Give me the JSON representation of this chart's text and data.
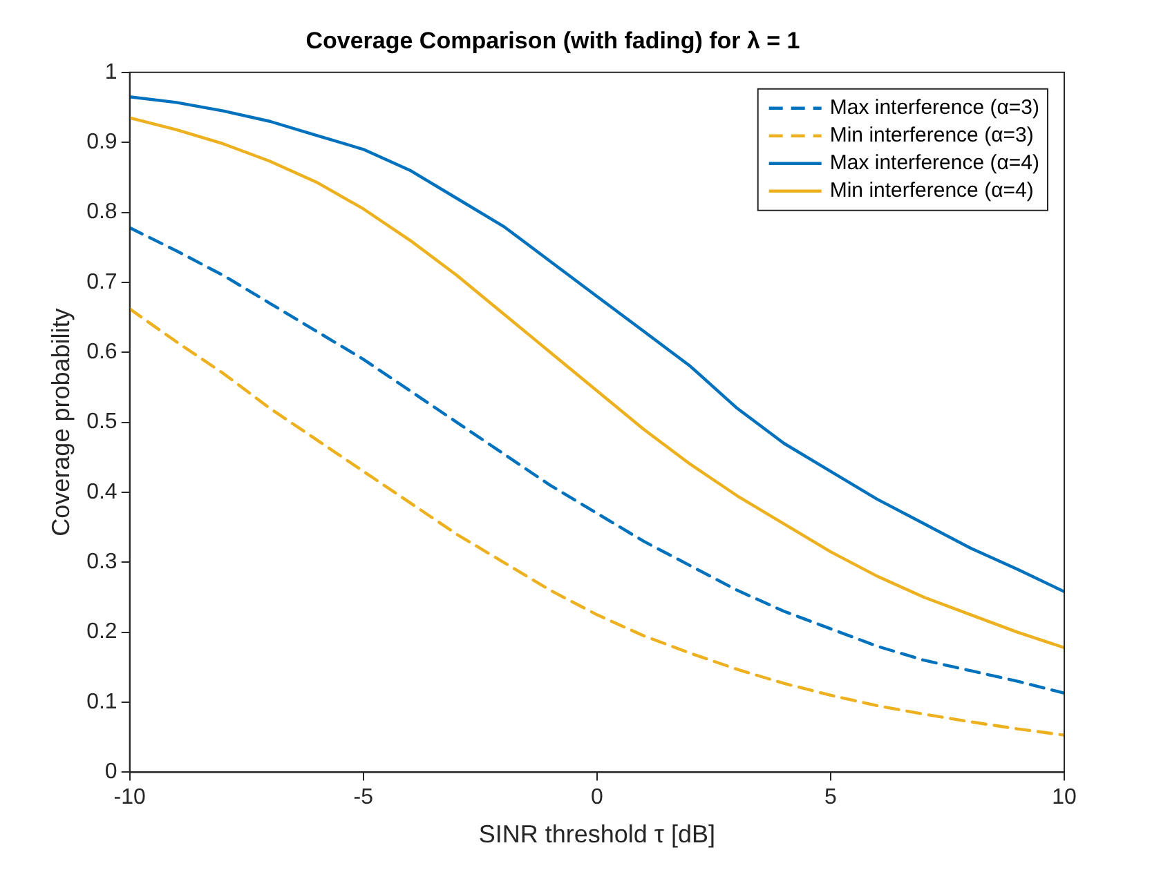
{
  "chart_data": {
    "type": "line",
    "title": "Coverage Comparison (with fading) for λ = 1",
    "xlabel": "SINR threshold τ [dB]",
    "ylabel": "Coverage probability",
    "x": [
      -10,
      -9,
      -8,
      -7,
      -6,
      -5,
      -4,
      -3,
      -2,
      -1,
      0,
      1,
      2,
      3,
      4,
      5,
      6,
      7,
      8,
      9,
      10
    ],
    "series": [
      {
        "name": "Max interference (α=3)",
        "color": "#0072bd",
        "line_style": "dashed",
        "values": [
          0.778,
          0.745,
          0.71,
          0.67,
          0.63,
          0.59,
          0.545,
          0.5,
          0.455,
          0.41,
          0.37,
          0.33,
          0.295,
          0.26,
          0.23,
          0.205,
          0.18,
          0.16,
          0.145,
          0.13,
          0.113
        ]
      },
      {
        "name": "Min interference (α=3)",
        "color": "#edb120",
        "line_style": "dashed",
        "values": [
          0.662,
          0.615,
          0.57,
          0.52,
          0.475,
          0.43,
          0.385,
          0.34,
          0.3,
          0.26,
          0.225,
          0.195,
          0.17,
          0.147,
          0.127,
          0.11,
          0.095,
          0.083,
          0.072,
          0.062,
          0.053
        ]
      },
      {
        "name": "Max interference (α=4)",
        "color": "#0072bd",
        "line_style": "solid",
        "values": [
          0.965,
          0.957,
          0.945,
          0.93,
          0.91,
          0.89,
          0.86,
          0.82,
          0.78,
          0.73,
          0.68,
          0.63,
          0.58,
          0.52,
          0.47,
          0.43,
          0.39,
          0.355,
          0.32,
          0.29,
          0.258
        ]
      },
      {
        "name": "Min interference (α=4)",
        "color": "#edb120",
        "line_style": "solid",
        "values": [
          0.935,
          0.918,
          0.898,
          0.873,
          0.843,
          0.805,
          0.76,
          0.71,
          0.655,
          0.6,
          0.545,
          0.49,
          0.44,
          0.395,
          0.355,
          0.315,
          0.28,
          0.25,
          0.225,
          0.2,
          0.178
        ]
      }
    ],
    "xlim": [
      -10,
      10
    ],
    "xticks": [
      -10,
      -5,
      0,
      5,
      10
    ],
    "ylim": [
      0,
      1
    ],
    "yticks": [
      0,
      0.1,
      0.2,
      0.3,
      0.4,
      0.5,
      0.6,
      0.7,
      0.8,
      0.9,
      1
    ],
    "legend": "top right",
    "marker": "none",
    "grid": false
  }
}
